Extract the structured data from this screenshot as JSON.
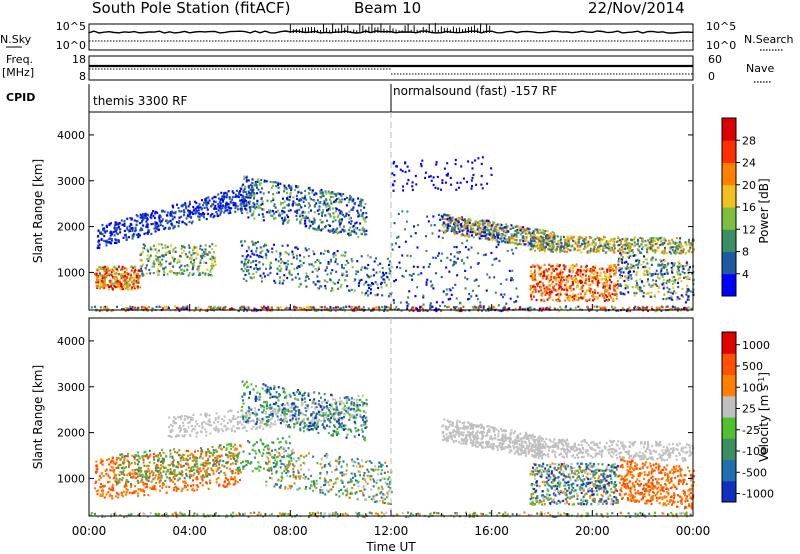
{
  "header": {
    "station": "South Pole Station (fitACF)",
    "beam": "Beam 10",
    "date": "22/Nov/2014"
  },
  "top_panels": {
    "nsky": {
      "label": "N.Sky",
      "yticks": [
        "10^5",
        "10^0"
      ],
      "right_label": "N.Search",
      "right_ticks": [
        "10^5",
        "10^0"
      ]
    },
    "freq": {
      "label_line1": "Freq.",
      "label_line2": "[MHz]",
      "yticks": [
        "18",
        "8"
      ],
      "right_label": "Nave",
      "right_ticks": [
        "60",
        "0"
      ]
    },
    "cpid": {
      "label": "CPID",
      "segments": [
        {
          "start_hour": 0,
          "end_hour": 12,
          "name": "themis 3300 RF"
        },
        {
          "start_hour": 12,
          "end_hour": 24,
          "name": "normalsound (fast) -157 RF"
        }
      ]
    }
  },
  "chart_data": [
    {
      "type": "heatmap",
      "name": "power",
      "ylabel": "Slant Range [km]",
      "xlabel": "",
      "x_range_hours": [
        0,
        24
      ],
      "ylim": [
        180,
        4500
      ],
      "yticks": [
        1000,
        2000,
        3000,
        4000
      ],
      "colorbar": {
        "label": "Power [dB]",
        "ticks": [
          "4",
          "8",
          "12",
          "16",
          "20",
          "24",
          "28"
        ],
        "colors": [
          "#0000ff",
          "#1e5aa0",
          "#3c8c64",
          "#7fbf3f",
          "#f0c020",
          "#ff8000",
          "#ff3000",
          "#dd0000"
        ],
        "range": [
          0,
          32
        ]
      }
    },
    {
      "type": "heatmap",
      "name": "velocity",
      "ylabel": "Slant Range [km]",
      "xlabel": "Time UT",
      "x_range_hours": [
        0,
        24
      ],
      "ylim": [
        180,
        4500
      ],
      "yticks": [
        1000,
        2000,
        3000,
        4000
      ],
      "xticks": [
        "00:00",
        "04:00",
        "08:00",
        "12:00",
        "16:00",
        "20:00",
        "00:00"
      ],
      "colorbar": {
        "label": "Velocity [m s^-1]",
        "ticks": [
          "1000",
          "500",
          "100",
          "25",
          "-25",
          "-100",
          "-500",
          "-1000"
        ],
        "colors": [
          "#1030c0",
          "#2070b0",
          "#3c8c64",
          "#50c030",
          "#c0c0c0",
          "#ff8000",
          "#ff5000",
          "#e00000"
        ]
      }
    }
  ]
}
